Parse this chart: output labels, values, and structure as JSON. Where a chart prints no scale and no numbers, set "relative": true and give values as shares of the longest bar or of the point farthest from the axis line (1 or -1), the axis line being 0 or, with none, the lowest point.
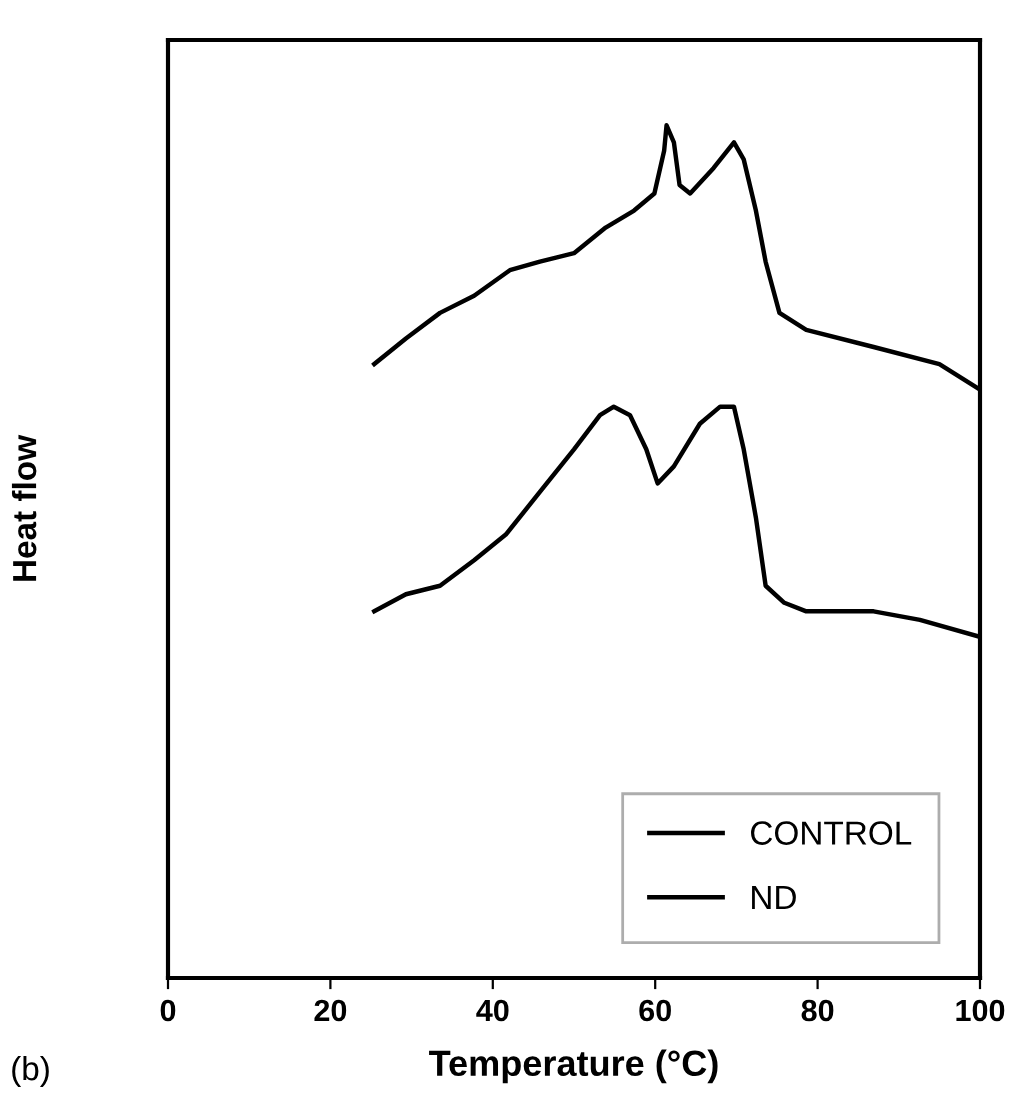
{
  "chart_data": {
    "type": "line",
    "xlabel": "Temperature (°C)",
    "ylabel": "Heat flow",
    "relative": true,
    "xlim": [
      0,
      100
    ],
    "xticks": [
      0,
      20,
      40,
      60,
      80,
      100
    ],
    "grid": false,
    "legend": "bottom right",
    "marker": "none",
    "line_style": "solid",
    "tick_labels": "x",
    "annotations": [
      "(b)"
    ],
    "series": [
      {
        "name": "CONTROL",
        "color": "#000000",
        "x": [
          25.4,
          29.3,
          33.5,
          37.7,
          42.1,
          45.8,
          50,
          53.9,
          57.4,
          59.9,
          61.1,
          61.4,
          62.3,
          63,
          64.3,
          67.2,
          69.7,
          70.9,
          72.4,
          73.6,
          75.3,
          78.6,
          86.9,
          95,
          100
        ],
        "values": [
          0.72,
          0.75,
          0.78,
          0.8,
          0.83,
          0.84,
          0.85,
          0.88,
          0.9,
          0.92,
          0.97,
          1.0,
          0.98,
          0.93,
          0.92,
          0.95,
          0.98,
          0.96,
          0.9,
          0.84,
          0.78,
          0.76,
          0.74,
          0.72,
          0.69
        ]
      },
      {
        "name": "ND",
        "color": "#000000",
        "x": [
          25.4,
          29.3,
          33.5,
          37.7,
          41.6,
          45.8,
          50,
          53.2,
          54.9,
          56.9,
          58.9,
          60.3,
          62.3,
          65.5,
          68,
          69.7,
          70.9,
          72.4,
          73.6,
          75.9,
          78.6,
          86.9,
          92.6,
          100
        ],
        "values": [
          0.43,
          0.45,
          0.46,
          0.49,
          0.52,
          0.57,
          0.62,
          0.66,
          0.67,
          0.66,
          0.62,
          0.58,
          0.6,
          0.65,
          0.67,
          0.67,
          0.62,
          0.54,
          0.46,
          0.44,
          0.43,
          0.43,
          0.42,
          0.4
        ]
      }
    ]
  }
}
